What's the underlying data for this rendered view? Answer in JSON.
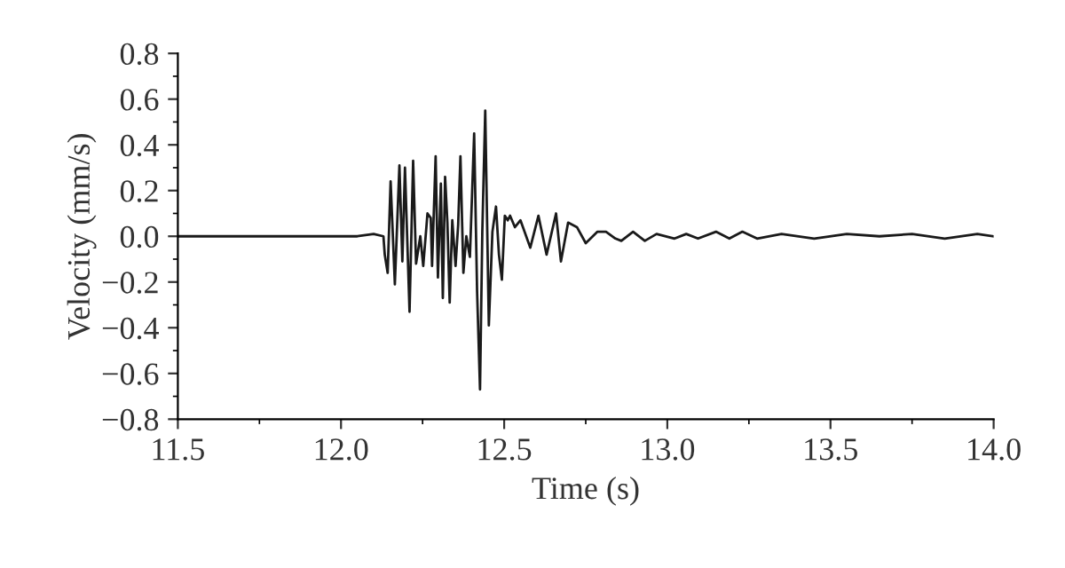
{
  "chart_data": {
    "type": "line",
    "xlabel": "Time (s)",
    "ylabel": "Velocity (mm/s)",
    "xlim": [
      11.5,
      14.0
    ],
    "xticks": [
      11.5,
      {
        "value": 12.0,
        "label": "12.0"
      },
      12.5,
      {
        "value": 13.0,
        "label": "13.0"
      },
      13.5,
      {
        "value": 14.0,
        "label": "14.0"
      }
    ],
    "ylim": [
      -0.8,
      0.8
    ],
    "yticks": [
      {
        "value": 0.8,
        "label": "0.8"
      },
      {
        "value": 0.6,
        "label": "0.6"
      },
      {
        "value": 0.4,
        "label": "0.4"
      },
      {
        "value": 0.2,
        "label": "0.2"
      },
      {
        "value": 0.0,
        "label": "0.0"
      },
      {
        "value": -0.2,
        "label": "−0.2"
      },
      {
        "value": -0.4,
        "label": "−0.4"
      },
      {
        "value": -0.6,
        "label": "−0.6"
      },
      {
        "value": -0.8,
        "label": "−0.8"
      }
    ],
    "grid": false,
    "legend": false,
    "marker": "none",
    "line_style": "solid",
    "series": [
      {
        "color": "#1a1a1a",
        "x": [
          11.5,
          11.7,
          11.9,
          12.0,
          12.05,
          12.1,
          12.13,
          12.134,
          12.143,
          12.152,
          12.165,
          12.179,
          12.188,
          12.196,
          12.21,
          12.221,
          12.23,
          12.243,
          12.252,
          12.265,
          12.275,
          12.279,
          12.29,
          12.297,
          12.306,
          12.312,
          12.319,
          12.326,
          12.333,
          12.341,
          12.351,
          12.359,
          12.366,
          12.375,
          12.384,
          12.395,
          12.408,
          12.417,
          12.426,
          12.433,
          12.442,
          12.453,
          12.464,
          12.475,
          12.484,
          12.493,
          12.502,
          12.511,
          12.518,
          12.533,
          12.55,
          12.58,
          12.605,
          12.63,
          12.659,
          12.674,
          12.696,
          12.723,
          12.75,
          12.786,
          12.812,
          12.841,
          12.859,
          12.895,
          12.931,
          12.967,
          13.022,
          13.058,
          13.094,
          13.149,
          13.19,
          13.23,
          13.275,
          13.35,
          13.45,
          13.55,
          13.65,
          13.75,
          13.85,
          13.95,
          14.0
        ],
        "values": [
          0.0,
          0.0,
          0.0,
          0.0,
          0.0,
          0.01,
          0.0,
          -0.08,
          -0.16,
          0.24,
          -0.21,
          0.31,
          -0.11,
          0.3,
          -0.33,
          0.33,
          -0.12,
          0.0,
          -0.13,
          0.1,
          0.08,
          -0.13,
          0.35,
          -0.18,
          0.23,
          -0.27,
          0.26,
          0.06,
          -0.29,
          0.07,
          -0.13,
          0.05,
          0.35,
          -0.16,
          0.0,
          -0.09,
          0.45,
          -0.24,
          -0.67,
          0.02,
          0.55,
          -0.39,
          0.02,
          0.13,
          -0.08,
          -0.19,
          0.09,
          0.07,
          0.09,
          0.04,
          0.07,
          -0.05,
          0.09,
          -0.08,
          0.1,
          -0.11,
          0.06,
          0.04,
          -0.03,
          0.02,
          0.02,
          -0.01,
          -0.02,
          0.02,
          -0.02,
          0.01,
          -0.01,
          0.01,
          -0.01,
          0.02,
          -0.01,
          0.02,
          -0.01,
          0.01,
          -0.01,
          0.01,
          0.0,
          0.01,
          -0.01,
          0.01,
          0.0
        ]
      }
    ]
  }
}
